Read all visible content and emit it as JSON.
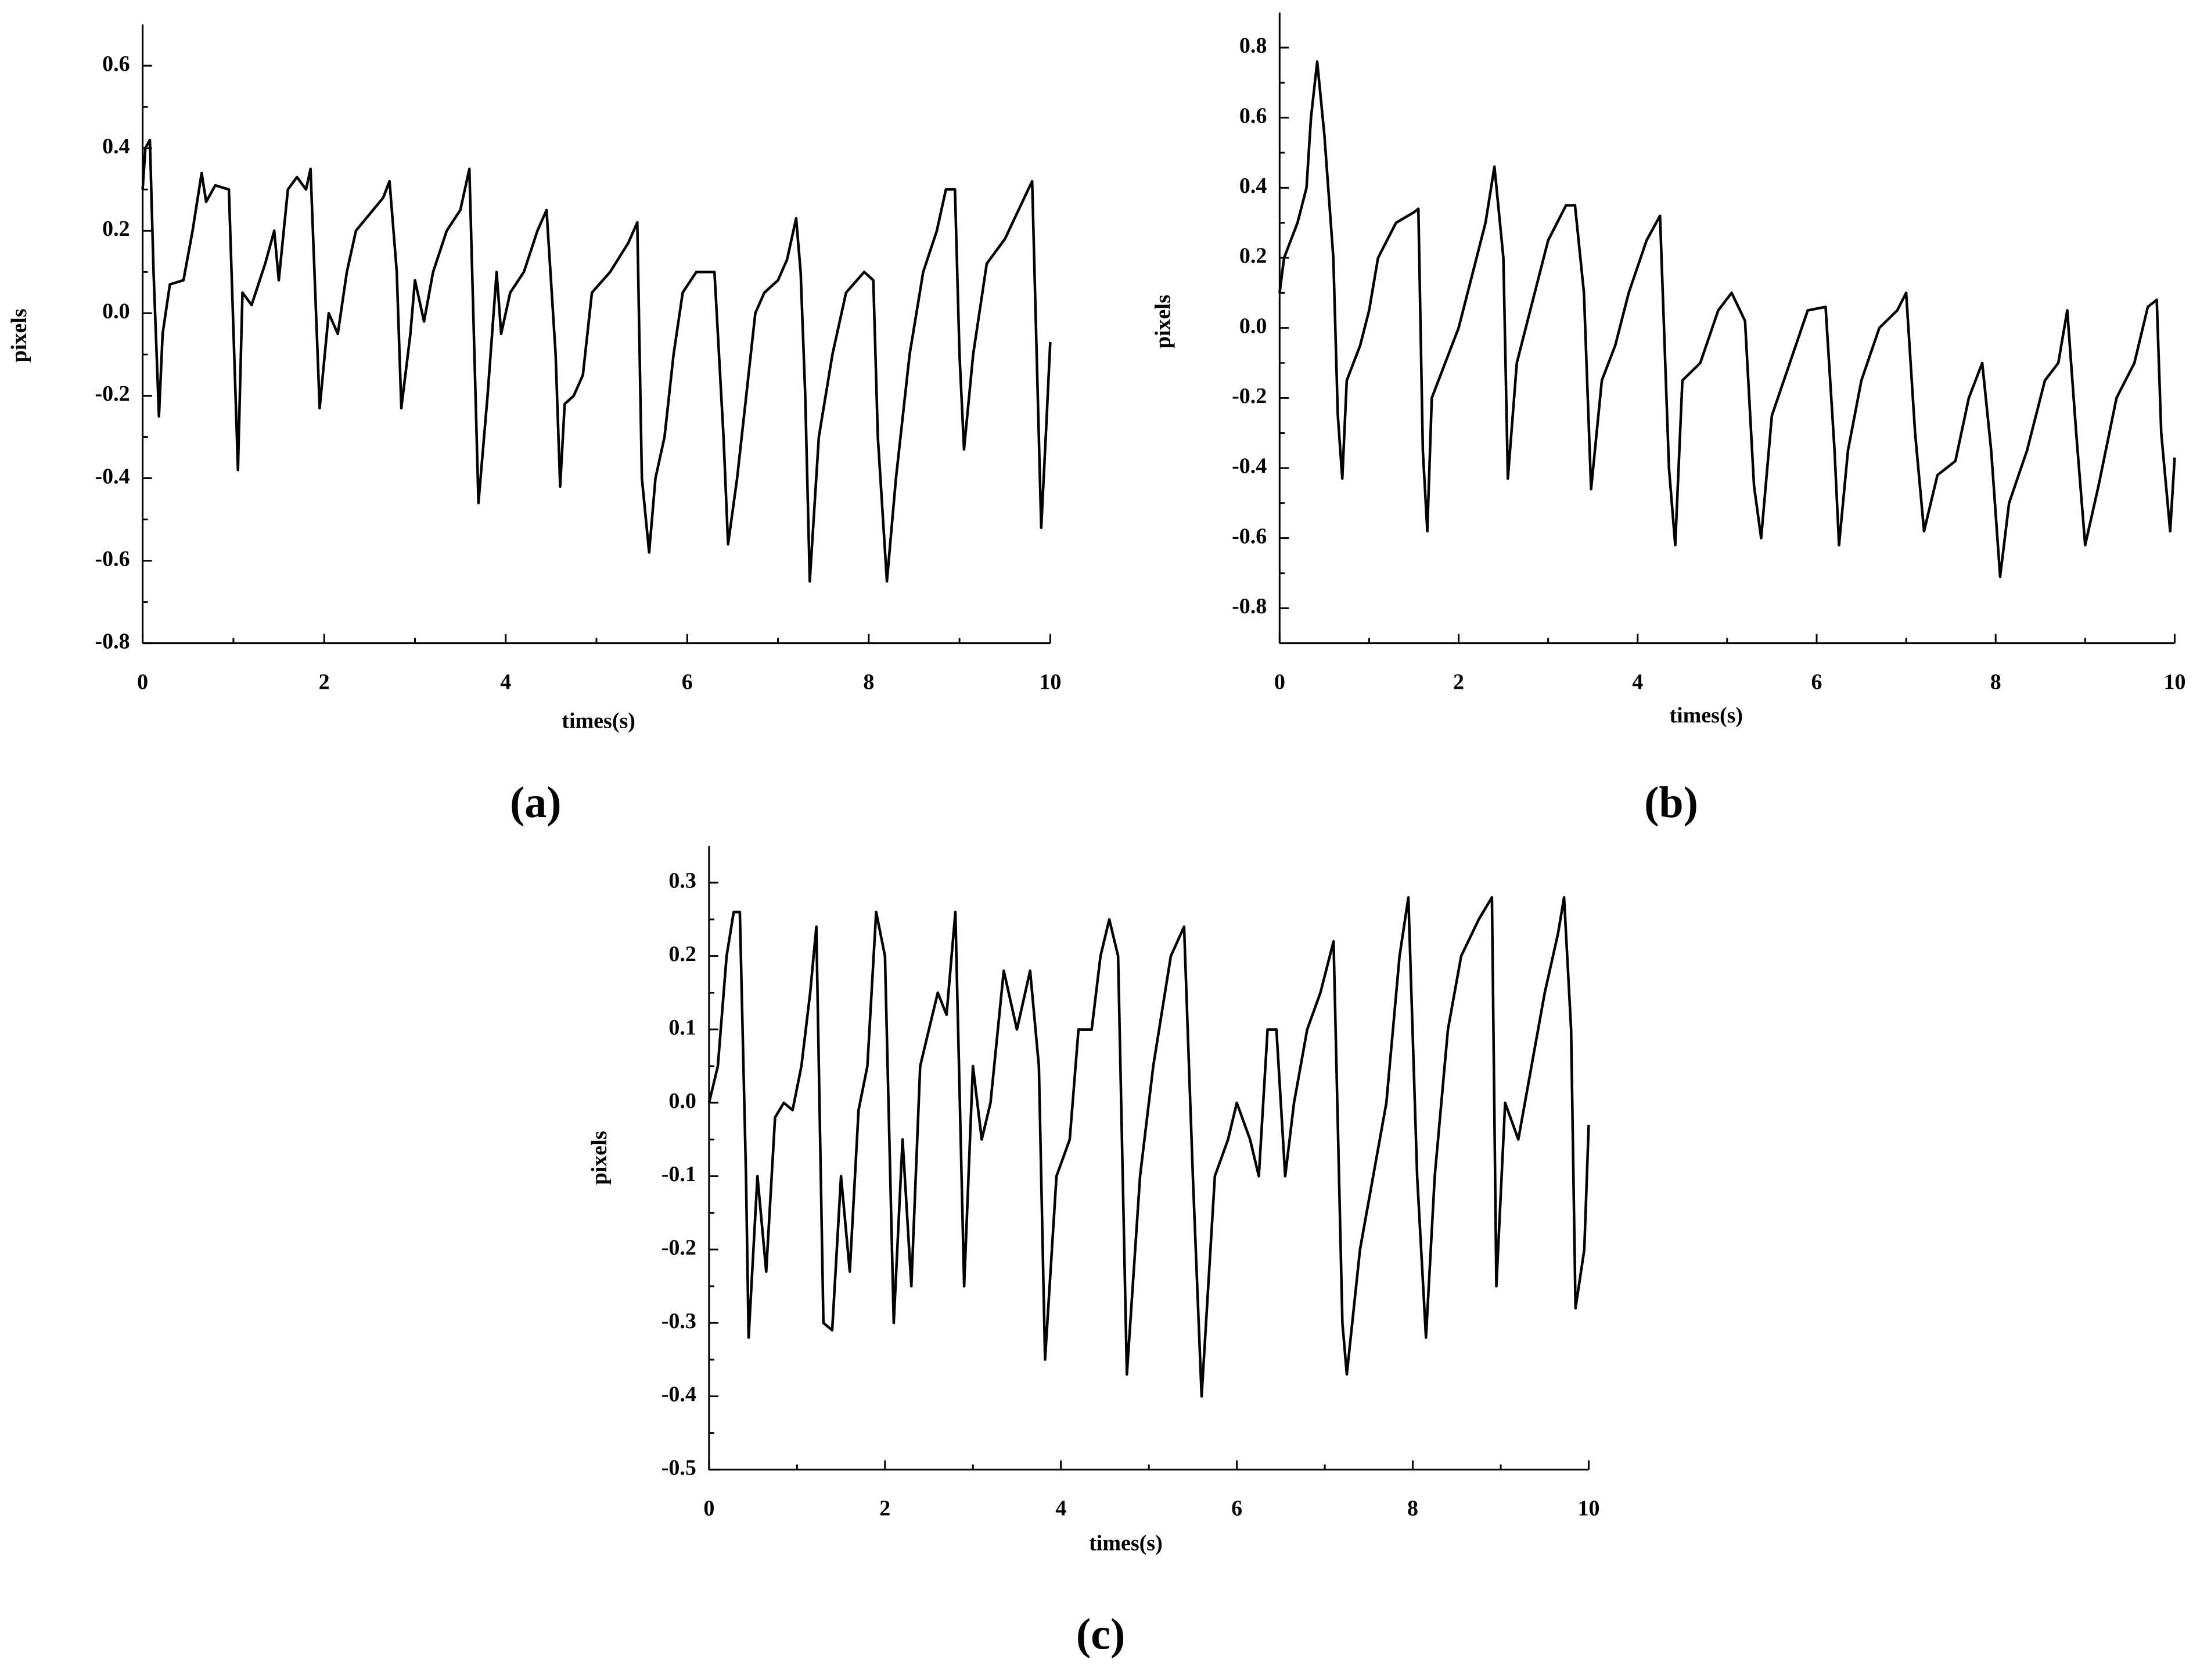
{
  "chart_data": [
    {
      "type": "line",
      "panel_label": "(a)",
      "xlabel": "times(s)",
      "ylabel": "pixels",
      "color": "#000000",
      "xlim": [
        0,
        10
      ],
      "ylim": [
        -0.8,
        0.7
      ],
      "xticks": [
        0,
        2,
        4,
        6,
        8,
        10
      ],
      "yticks": [
        -0.8,
        -0.6,
        -0.4,
        -0.2,
        {
          "value": 0,
          "label": "0.0"
        },
        0.2,
        0.4,
        0.6
      ],
      "x": [
        0,
        0.03,
        0.08,
        0.12,
        0.18,
        0.22,
        0.3,
        0.45,
        0.55,
        0.65,
        0.7,
        0.8,
        0.95,
        1.05,
        1.1,
        1.2,
        1.35,
        1.45,
        1.5,
        1.6,
        1.7,
        1.8,
        1.85,
        1.95,
        2.05,
        2.15,
        2.25,
        2.35,
        2.5,
        2.65,
        2.72,
        2.8,
        2.85,
        2.95,
        3.0,
        3.1,
        3.2,
        3.35,
        3.5,
        3.6,
        3.7,
        3.8,
        3.9,
        3.95,
        4.05,
        4.2,
        4.35,
        4.45,
        4.55,
        4.6,
        4.65,
        4.75,
        4.85,
        4.95,
        5.15,
        5.35,
        5.45,
        5.5,
        5.58,
        5.65,
        5.75,
        5.85,
        5.95,
        6.1,
        6.3,
        6.4,
        6.45,
        6.55,
        6.65,
        6.75,
        6.85,
        7.0,
        7.1,
        7.2,
        7.25,
        7.3,
        7.35,
        7.45,
        7.6,
        7.75,
        7.95,
        8.05,
        8.1,
        8.2,
        8.3,
        8.45,
        8.6,
        8.75,
        8.85,
        8.95,
        9.0,
        9.05,
        9.15,
        9.3,
        9.5,
        9.65,
        9.8,
        9.85,
        9.9,
        9.95,
        10.0
      ],
      "values": [
        0.3,
        0.4,
        0.42,
        0.1,
        -0.25,
        -0.05,
        0.07,
        0.08,
        0.2,
        0.34,
        0.27,
        0.31,
        0.3,
        -0.38,
        0.05,
        0.02,
        0.12,
        0.2,
        0.08,
        0.3,
        0.33,
        0.3,
        0.35,
        -0.23,
        0.0,
        -0.05,
        0.1,
        0.2,
        0.24,
        0.28,
        0.32,
        0.1,
        -0.23,
        -0.05,
        0.08,
        -0.02,
        0.1,
        0.2,
        0.25,
        0.35,
        -0.46,
        -0.2,
        0.1,
        -0.05,
        0.05,
        0.1,
        0.2,
        0.25,
        -0.1,
        -0.42,
        -0.22,
        -0.2,
        -0.15,
        0.05,
        0.1,
        0.17,
        0.22,
        -0.4,
        -0.58,
        -0.4,
        -0.3,
        -0.1,
        0.05,
        0.1,
        0.1,
        -0.3,
        -0.56,
        -0.4,
        -0.2,
        0.0,
        0.05,
        0.08,
        0.13,
        0.23,
        0.1,
        -0.2,
        -0.65,
        -0.3,
        -0.1,
        0.05,
        0.1,
        0.08,
        -0.3,
        -0.65,
        -0.4,
        -0.1,
        0.1,
        0.2,
        0.3,
        0.3,
        -0.1,
        -0.33,
        -0.1,
        0.12,
        0.18,
        0.25,
        0.32,
        -0.1,
        -0.52,
        -0.3,
        -0.07
      ]
    },
    {
      "type": "line",
      "panel_label": "(b)",
      "xlabel": "times(s)",
      "ylabel": "pixels",
      "color": "#000000",
      "xlim": [
        0,
        10
      ],
      "ylim": [
        -0.9,
        0.9
      ],
      "xticks": [
        0,
        2,
        4,
        6,
        8,
        10
      ],
      "yticks": [
        -0.8,
        -0.6,
        -0.4,
        -0.2,
        {
          "value": 0,
          "label": "0.0"
        },
        0.2,
        0.4,
        0.6,
        0.8
      ],
      "x": [
        0,
        0.05,
        0.2,
        0.3,
        0.35,
        0.42,
        0.5,
        0.6,
        0.65,
        0.7,
        0.75,
        0.9,
        1.0,
        1.1,
        1.3,
        1.5,
        1.55,
        1.6,
        1.65,
        1.7,
        1.85,
        2.0,
        2.15,
        2.3,
        2.4,
        2.5,
        2.55,
        2.65,
        2.8,
        3.0,
        3.2,
        3.3,
        3.4,
        3.48,
        3.6,
        3.75,
        3.9,
        4.1,
        4.25,
        4.35,
        4.42,
        4.5,
        4.7,
        4.9,
        5.05,
        5.2,
        5.3,
        5.38,
        5.5,
        5.7,
        5.9,
        6.1,
        6.2,
        6.25,
        6.35,
        6.5,
        6.7,
        6.9,
        7.0,
        7.1,
        7.2,
        7.35,
        7.55,
        7.7,
        7.85,
        7.95,
        8.05,
        8.15,
        8.35,
        8.55,
        8.7,
        8.8,
        8.9,
        9.0,
        9.15,
        9.35,
        9.55,
        9.7,
        9.8,
        9.85,
        9.95,
        10.0
      ],
      "values": [
        0.1,
        0.2,
        0.3,
        0.4,
        0.6,
        0.76,
        0.55,
        0.2,
        -0.25,
        -0.43,
        -0.15,
        -0.05,
        0.05,
        0.2,
        0.3,
        0.33,
        0.34,
        -0.35,
        -0.58,
        -0.2,
        -0.1,
        0.0,
        0.15,
        0.3,
        0.46,
        0.2,
        -0.43,
        -0.1,
        0.05,
        0.25,
        0.35,
        0.35,
        0.1,
        -0.46,
        -0.15,
        -0.05,
        0.1,
        0.25,
        0.32,
        -0.4,
        -0.62,
        -0.15,
        -0.1,
        0.05,
        0.1,
        0.02,
        -0.45,
        -0.6,
        -0.25,
        -0.1,
        0.05,
        0.06,
        -0.35,
        -0.62,
        -0.35,
        -0.15,
        0.0,
        0.05,
        0.1,
        -0.3,
        -0.58,
        -0.42,
        -0.38,
        -0.2,
        -0.1,
        -0.35,
        -0.71,
        -0.5,
        -0.35,
        -0.15,
        -0.1,
        0.05,
        -0.3,
        -0.62,
        -0.45,
        -0.2,
        -0.1,
        0.06,
        0.08,
        -0.3,
        -0.58,
        -0.37
      ]
    },
    {
      "type": "line",
      "panel_label": "(c)",
      "xlabel": "times(s)",
      "ylabel": "pixels",
      "color": "#000000",
      "xlim": [
        0,
        10
      ],
      "ylim": [
        -0.5,
        0.35
      ],
      "xticks": [
        0,
        2,
        4,
        6,
        8,
        10
      ],
      "yticks": [
        -0.5,
        -0.4,
        -0.3,
        -0.2,
        -0.1,
        {
          "value": 0,
          "label": "0.0"
        },
        0.1,
        0.2,
        0.3
      ],
      "x": [
        0,
        0.1,
        0.2,
        0.28,
        0.35,
        0.42,
        0.45,
        0.55,
        0.65,
        0.75,
        0.85,
        0.95,
        1.05,
        1.15,
        1.22,
        1.3,
        1.4,
        1.5,
        1.6,
        1.7,
        1.8,
        1.9,
        2.0,
        2.1,
        2.2,
        2.3,
        2.4,
        2.5,
        2.6,
        2.7,
        2.8,
        2.9,
        3.0,
        3.1,
        3.2,
        3.35,
        3.5,
        3.65,
        3.75,
        3.82,
        3.95,
        4.1,
        4.2,
        4.35,
        4.45,
        4.55,
        4.65,
        4.75,
        4.9,
        5.05,
        5.25,
        5.4,
        5.5,
        5.6,
        5.75,
        5.9,
        6.0,
        6.15,
        6.25,
        6.35,
        6.45,
        6.55,
        6.65,
        6.8,
        6.95,
        7.1,
        7.2,
        7.25,
        7.4,
        7.55,
        7.7,
        7.85,
        7.95,
        8.05,
        8.15,
        8.25,
        8.4,
        8.55,
        8.75,
        8.9,
        8.95,
        9.05,
        9.2,
        9.35,
        9.5,
        9.65,
        9.72,
        9.8,
        9.85,
        9.95,
        10.0
      ],
      "values": [
        0.0,
        0.05,
        0.2,
        0.26,
        0.26,
        -0.1,
        -0.32,
        -0.1,
        -0.23,
        -0.02,
        0.0,
        -0.01,
        0.05,
        0.15,
        0.24,
        -0.3,
        -0.31,
        -0.1,
        -0.23,
        -0.01,
        0.05,
        0.26,
        0.2,
        -0.3,
        -0.05,
        -0.25,
        0.05,
        0.1,
        0.15,
        0.12,
        0.26,
        -0.25,
        0.05,
        -0.05,
        0.0,
        0.18,
        0.1,
        0.18,
        0.05,
        -0.35,
        -0.1,
        -0.05,
        0.1,
        0.1,
        0.2,
        0.25,
        0.2,
        -0.37,
        -0.1,
        0.05,
        0.2,
        0.24,
        -0.1,
        -0.4,
        -0.1,
        -0.05,
        0.0,
        -0.05,
        -0.1,
        0.1,
        0.1,
        -0.1,
        0.0,
        0.1,
        0.15,
        0.22,
        -0.3,
        -0.37,
        -0.2,
        -0.1,
        0.0,
        0.2,
        0.28,
        -0.1,
        -0.32,
        -0.1,
        0.1,
        0.2,
        0.25,
        0.28,
        -0.25,
        0.0,
        -0.05,
        0.05,
        0.15,
        0.23,
        0.28,
        0.1,
        -0.28,
        -0.2,
        -0.03
      ]
    }
  ]
}
